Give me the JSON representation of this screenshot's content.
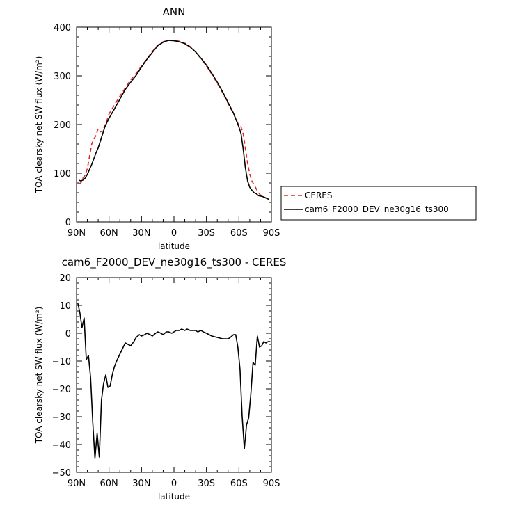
{
  "chart_data": [
    {
      "type": "line",
      "title": "ANN",
      "xlabel": "latitude",
      "ylabel": "TOA clearsky net SW flux (W/m²)",
      "xlim": [
        90,
        -90
      ],
      "ylim": [
        0,
        400
      ],
      "x_ticks": [
        90,
        60,
        30,
        0,
        -30,
        -60,
        -90
      ],
      "x_tick_labels": [
        "90N",
        "60N",
        "30N",
        "0",
        "30S",
        "60S",
        "90S"
      ],
      "y_ticks": [
        0,
        100,
        200,
        300,
        400
      ],
      "y_tick_labels": [
        "0",
        "100",
        "200",
        "300",
        "400"
      ],
      "legend_position": "right",
      "series": [
        {
          "name": "CERES",
          "color": "#e0261b",
          "dash": "dashed",
          "x": [
            88,
            86,
            84,
            82,
            80,
            78,
            76,
            74,
            72,
            70,
            68,
            66,
            64,
            62,
            60,
            55,
            50,
            45,
            40,
            35,
            30,
            25,
            20,
            15,
            10,
            5,
            0,
            -5,
            -10,
            -15,
            -20,
            -25,
            -30,
            -35,
            -40,
            -45,
            -50,
            -55,
            -60,
            -62,
            -64,
            -66,
            -68,
            -70,
            -72,
            -74,
            -76,
            -78,
            -80,
            -82,
            -84,
            -86,
            -88
          ],
          "y": [
            78,
            80,
            90,
            96,
            110,
            135,
            160,
            170,
            178,
            192,
            185,
            187,
            196,
            208,
            222,
            240,
            258,
            275,
            292,
            305,
            320,
            335,
            350,
            363,
            370,
            373,
            373,
            371,
            367,
            360,
            349,
            335,
            320,
            303,
            285,
            265,
            243,
            222,
            198,
            195,
            180,
            150,
            120,
            98,
            84,
            76,
            68,
            60,
            55,
            53,
            50,
            48,
            47
          ]
        },
        {
          "name": "cam6_F2000_DEV_ne30g16_ts300",
          "color": "#000000",
          "dash": "solid",
          "x": [
            88,
            86,
            84,
            82,
            80,
            78,
            76,
            74,
            72,
            70,
            68,
            66,
            64,
            62,
            60,
            55,
            50,
            45,
            40,
            35,
            30,
            25,
            20,
            15,
            10,
            5,
            0,
            -5,
            -10,
            -15,
            -20,
            -25,
            -30,
            -35,
            -40,
            -45,
            -50,
            -55,
            -60,
            -62,
            -64,
            -66,
            -68,
            -70,
            -72,
            -74,
            -76,
            -78,
            -80,
            -82,
            -84,
            -86,
            -88
          ],
          "y": [
            86,
            84,
            86,
            90,
            98,
            108,
            118,
            130,
            142,
            152,
            166,
            180,
            194,
            204,
            213,
            232,
            252,
            272,
            287,
            301,
            318,
            334,
            348,
            362,
            369,
            373,
            372,
            370,
            366,
            359,
            349,
            336,
            322,
            305,
            287,
            267,
            245,
            223,
            195,
            181,
            148,
            110,
            84,
            71,
            65,
            60,
            58,
            54,
            53,
            52,
            50,
            48,
            46
          ]
        }
      ]
    },
    {
      "type": "line",
      "title": "cam6_F2000_DEV_ne30g16_ts300 - CERES",
      "xlabel": "latitude",
      "ylabel": "TOA clearsky net SW flux (W/m²)",
      "xlim": [
        90,
        -90
      ],
      "ylim": [
        -50,
        20
      ],
      "x_ticks": [
        90,
        60,
        30,
        0,
        -30,
        -60,
        -90
      ],
      "x_tick_labels": [
        "90N",
        "60N",
        "30N",
        "0",
        "30S",
        "60S",
        "90S"
      ],
      "y_ticks": [
        -50,
        -40,
        -30,
        -20,
        -10,
        0,
        10,
        20
      ],
      "y_tick_labels": [
        "−50",
        "−40",
        "−30",
        "−20",
        "−10",
        "0",
        "10",
        "20"
      ],
      "series": [
        {
          "color": "#000000",
          "dash": "solid",
          "x": [
            89,
            87,
            85,
            83,
            81,
            79,
            77,
            75,
            73,
            71,
            69,
            67,
            65,
            63,
            61,
            59,
            57,
            55,
            53,
            50,
            45,
            40,
            37,
            35,
            32,
            30,
            27,
            25,
            22,
            20,
            17,
            15,
            12,
            10,
            7,
            5,
            2,
            0,
            -2,
            -5,
            -7,
            -10,
            -12,
            -15,
            -17,
            -20,
            -22,
            -25,
            -27,
            -30,
            -35,
            -40,
            -45,
            -50,
            -52,
            -55,
            -57,
            -59,
            -61,
            -63,
            -65,
            -67,
            -69,
            -71,
            -73,
            -75,
            -77,
            -79,
            -81,
            -83,
            -85,
            -87,
            -89
          ],
          "y": [
            11,
            7.5,
            2,
            5.5,
            -9.5,
            -8,
            -16,
            -32,
            -45,
            -36,
            -44.5,
            -24,
            -18,
            -15,
            -19.5,
            -19,
            -15,
            -12,
            -10,
            -7.5,
            -3.5,
            -4.5,
            -3,
            -1.5,
            -0.5,
            -1,
            -0.5,
            0,
            -0.5,
            -1,
            0,
            0.5,
            0,
            -0.5,
            0.5,
            0.5,
            0,
            0.5,
            1,
            1,
            1.5,
            1,
            1.5,
            1,
            1,
            1,
            0.5,
            1,
            0.5,
            0,
            -1,
            -1.5,
            -2,
            -2,
            -1.5,
            -0.5,
            -0.5,
            -5,
            -13,
            -30,
            -41.5,
            -33,
            -30.5,
            -22,
            -10.5,
            -11.5,
            -1,
            -5,
            -4.5,
            -3,
            -3.5,
            -3,
            -3
          ]
        }
      ]
    }
  ]
}
